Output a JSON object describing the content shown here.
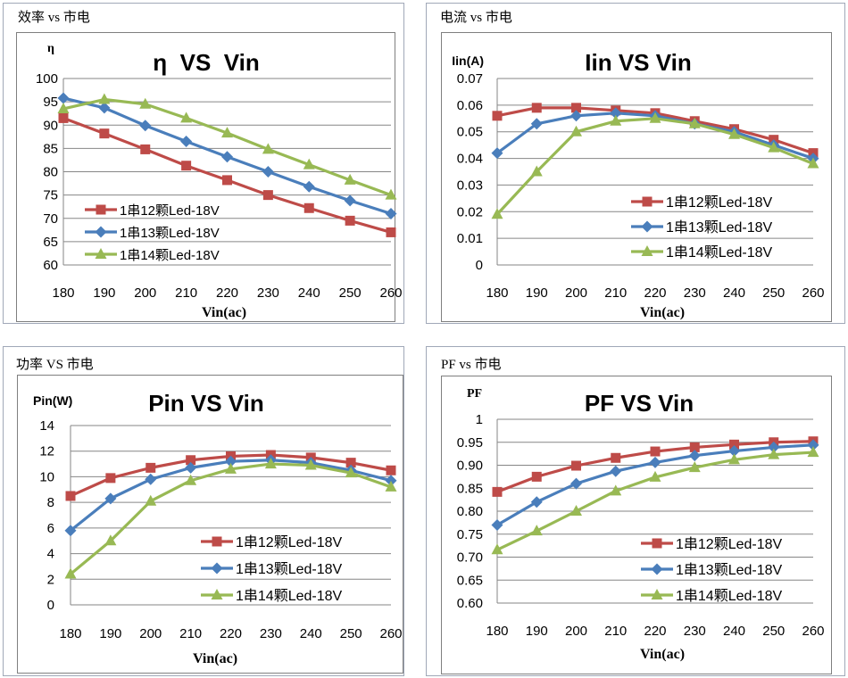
{
  "colors": {
    "series_12": "#BE4B48",
    "series_13": "#4A7EBB",
    "series_14": "#98B954",
    "grid": "#868686",
    "frame": "#A0A8B8"
  },
  "chart_data": [
    {
      "type": "line",
      "heading": "效率 vs 市电",
      "title": "η  VS  Vin",
      "ylabel": "η",
      "xlabel": "Vin(ac)",
      "x": [
        180,
        190,
        200,
        210,
        220,
        230,
        240,
        250,
        260
      ],
      "ylim": [
        60,
        100
      ],
      "ystep": 5,
      "ytick_decimals": 0,
      "legend_position": "bottom-left",
      "series": [
        {
          "name": "1串12颗Led-18V",
          "marker": "square",
          "values": [
            91.5,
            88.2,
            84.8,
            81.3,
            78.2,
            75.0,
            72.2,
            69.5,
            67.0
          ]
        },
        {
          "name": "1串13颗Led-18V",
          "marker": "diamond",
          "values": [
            95.8,
            93.7,
            89.9,
            86.5,
            83.2,
            80.0,
            76.8,
            73.8,
            71.0
          ]
        },
        {
          "name": "1串14颗Led-18V",
          "marker": "triangle",
          "values": [
            93.5,
            95.5,
            94.5,
            91.5,
            88.3,
            84.8,
            81.5,
            78.2,
            75.0
          ]
        }
      ]
    },
    {
      "type": "line",
      "heading": "电流 vs 市电",
      "title": "Iin VS Vin",
      "ylabel": "Iin(A)",
      "xlabel": "Vin(ac)",
      "x": [
        180,
        190,
        200,
        210,
        220,
        230,
        240,
        250,
        260
      ],
      "ylim": [
        0,
        0.07
      ],
      "ystep": 0.01,
      "ytick_decimals": 2,
      "legend_position": "bottom-right",
      "series": [
        {
          "name": "1串12颗Led-18V",
          "marker": "square",
          "values": [
            0.056,
            0.059,
            0.059,
            0.058,
            0.057,
            0.054,
            0.051,
            0.047,
            0.042
          ]
        },
        {
          "name": "1串13颗Led-18V",
          "marker": "diamond",
          "values": [
            0.042,
            0.053,
            0.056,
            0.057,
            0.056,
            0.053,
            0.05,
            0.045,
            0.04
          ]
        },
        {
          "name": "1串14颗Led-18V",
          "marker": "triangle",
          "values": [
            0.019,
            0.035,
            0.05,
            0.054,
            0.055,
            0.053,
            0.049,
            0.044,
            0.038
          ]
        }
      ]
    },
    {
      "type": "line",
      "heading": "功率 VS 市电",
      "title": "Pin VS Vin",
      "ylabel": "Pin(W)",
      "xlabel": "Vin(ac)",
      "x": [
        180,
        190,
        200,
        210,
        220,
        230,
        240,
        250,
        260
      ],
      "ylim": [
        0,
        14
      ],
      "ystep": 2,
      "ytick_decimals": 0,
      "legend_position": "bottom-right",
      "series": [
        {
          "name": "1串12颗Led-18V",
          "marker": "square",
          "values": [
            8.5,
            9.9,
            10.7,
            11.3,
            11.6,
            11.7,
            11.5,
            11.1,
            10.5
          ]
        },
        {
          "name": "1串13颗Led-18V",
          "marker": "diamond",
          "values": [
            5.8,
            8.3,
            9.8,
            10.7,
            11.2,
            11.3,
            11.1,
            10.5,
            9.7
          ]
        },
        {
          "name": "1串14颗Led-18V",
          "marker": "triangle",
          "values": [
            2.4,
            5.0,
            8.1,
            9.7,
            10.6,
            11.0,
            10.9,
            10.3,
            9.2
          ]
        }
      ]
    },
    {
      "type": "line",
      "heading": "PF vs 市电",
      "title": "PF VS Vin",
      "ylabel": "PF",
      "xlabel": "Vin(ac)",
      "x": [
        180,
        190,
        200,
        210,
        220,
        230,
        240,
        250,
        260
      ],
      "ylim": [
        0.6,
        1
      ],
      "ystep": 0.05,
      "ytick_decimals": 2,
      "legend_position": "bottom-right",
      "series": [
        {
          "name": "1串12颗Led-18V",
          "marker": "square",
          "values": [
            0.842,
            0.875,
            0.899,
            0.916,
            0.93,
            0.939,
            0.945,
            0.95,
            0.952
          ]
        },
        {
          "name": "1串13颗Led-18V",
          "marker": "diamond",
          "values": [
            0.77,
            0.82,
            0.86,
            0.887,
            0.906,
            0.921,
            0.931,
            0.939,
            0.944
          ]
        },
        {
          "name": "1串14颗Led-18V",
          "marker": "triangle",
          "values": [
            0.716,
            0.757,
            0.8,
            0.844,
            0.874,
            0.895,
            0.912,
            0.923,
            0.928
          ]
        }
      ]
    }
  ]
}
